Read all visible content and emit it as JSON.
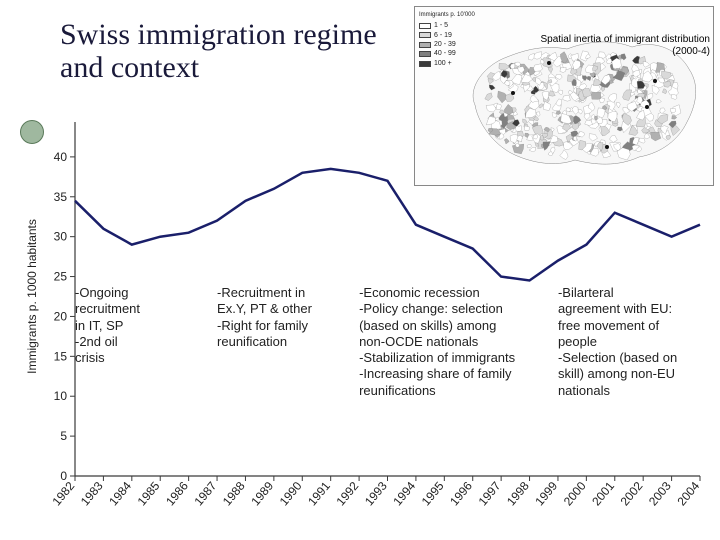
{
  "title": "Swiss immigration regime and context",
  "map": {
    "caption": "Spatial inertia of immigrant distribution",
    "subcaption": "(2000-4)",
    "legend_title": "Immigrants p. 10'000",
    "legend": [
      {
        "label": "1 - 5",
        "color": "#ffffff"
      },
      {
        "label": "6 - 19",
        "color": "#d9d9d9"
      },
      {
        "label": "20 - 39",
        "color": "#b0b0b0"
      },
      {
        "label": "40 - 99",
        "color": "#808080"
      },
      {
        "label": "100 +",
        "color": "#3a3a3a"
      }
    ],
    "outline_color": "#777",
    "bg": "#ffffff"
  },
  "chart": {
    "type": "line",
    "x_labels": [
      "1982",
      "1983",
      "1984",
      "1985",
      "1986",
      "1987",
      "1988",
      "1989",
      "1990",
      "1991",
      "1992",
      "1993",
      "1994",
      "1995",
      "1996",
      "1997",
      "1998",
      "1999",
      "2000",
      "2001",
      "2002",
      "2003",
      "2004"
    ],
    "y": [
      34.5,
      31,
      29,
      30,
      30.5,
      32,
      34.5,
      36,
      38,
      38.5,
      38,
      37,
      31.5,
      30,
      28.5,
      25,
      24.5,
      27,
      29,
      33,
      31.5,
      30,
      31.5
    ],
    "line_color": "#1a1f6a",
    "line_width": 2.5,
    "ylabel": "Immigrants p. 1000 habitants",
    "ylim": [
      0,
      45
    ],
    "ytick_step": 5,
    "axis_color": "#3a3a3a",
    "axis_fontsize": 12,
    "grid": false,
    "bg": "#ffffff"
  },
  "annotations": [
    {
      "lines": [
        "-Ongoing",
        "recruitment",
        "in IT, SP",
        "-2nd oil",
        "crisis"
      ],
      "x_start_idx": 0
    },
    {
      "lines": [
        "-Recruitment in",
        "Ex.Y, PT & other",
        "-Right for family",
        "reunification"
      ],
      "x_start_idx": 5
    },
    {
      "lines": [
        "-Economic recession",
        "-Policy change: selection",
        "(based on skills) among",
        "non-OCDE nationals",
        "-Stabilization of immigrants",
        "-Increasing share of family",
        "reunifications"
      ],
      "x_start_idx": 10
    },
    {
      "lines": [
        "-Bilarteral",
        "agreement with EU:",
        "free movement of",
        "people",
        "-Selection (based on",
        "skill) among non-EU",
        "nationals"
      ],
      "x_start_idx": 17
    }
  ],
  "colors": {
    "title": "#1a1a3a",
    "bullet_fill": "#9fb89f",
    "bullet_border": "#5a7a5a",
    "text": "#222222"
  }
}
